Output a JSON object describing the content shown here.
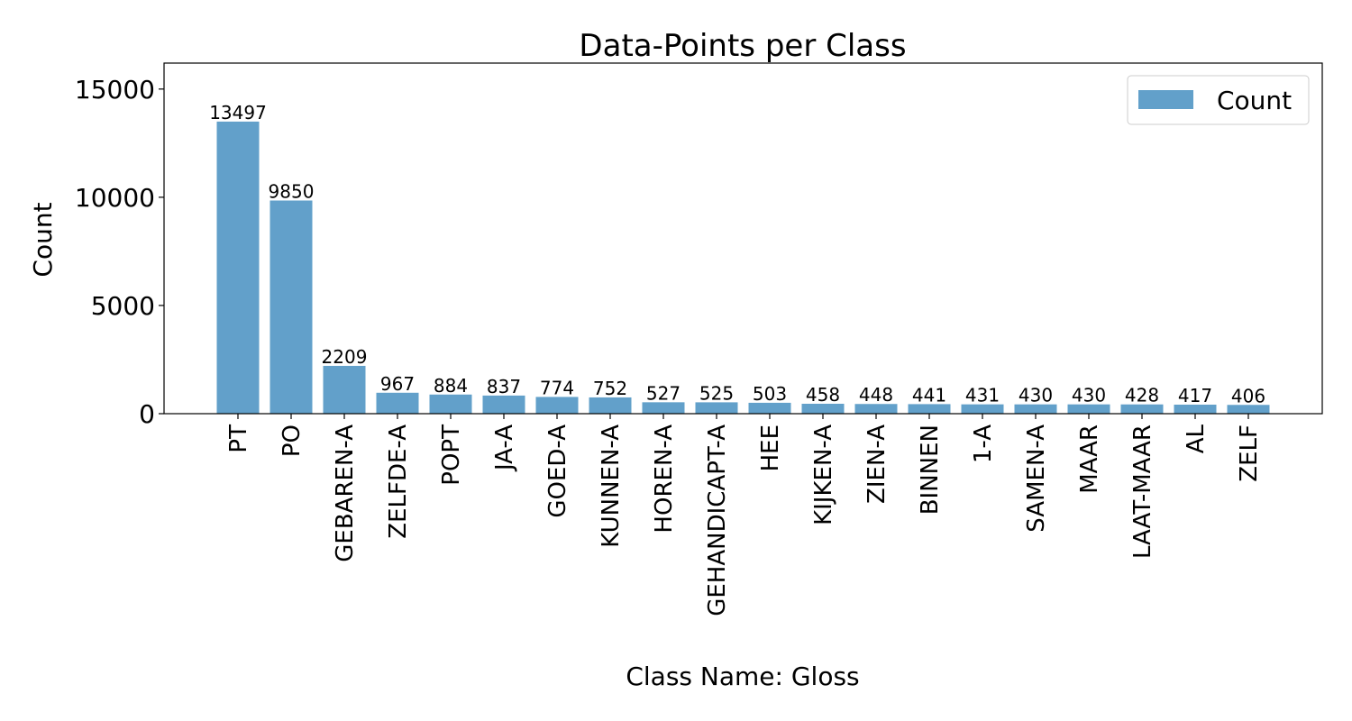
{
  "chart_data": {
    "type": "bar",
    "title": "Data-Points per Class",
    "xlabel": "Class Name: Gloss",
    "ylabel": "Count",
    "ylim": [
      0,
      16200
    ],
    "yticks": [
      0,
      5000,
      10000,
      15000
    ],
    "ytick_labels": [
      "0",
      "5000",
      "10000",
      "15000"
    ],
    "grid": false,
    "legend": {
      "position": "top-right",
      "entries": [
        "Count"
      ]
    },
    "color": "#62a0ca",
    "categories": [
      "PT",
      "PO",
      "GEBAREN-A",
      "ZELFDE-A",
      "POPT",
      "JA-A",
      "GOED-A",
      "KUNNEN-A",
      "HOREN-A",
      "GEHANDICAPT-A",
      "HEE",
      "KIJKEN-A",
      "ZIEN-A",
      "BINNEN",
      "1-A",
      "SAMEN-A",
      "MAAR",
      "LAAT-MAAR",
      "AL",
      "ZELF"
    ],
    "series": [
      {
        "name": "Count",
        "values": [
          13497,
          9850,
          2209,
          967,
          884,
          837,
          774,
          752,
          527,
          525,
          503,
          458,
          448,
          441,
          431,
          430,
          430,
          428,
          417,
          406
        ]
      }
    ]
  }
}
